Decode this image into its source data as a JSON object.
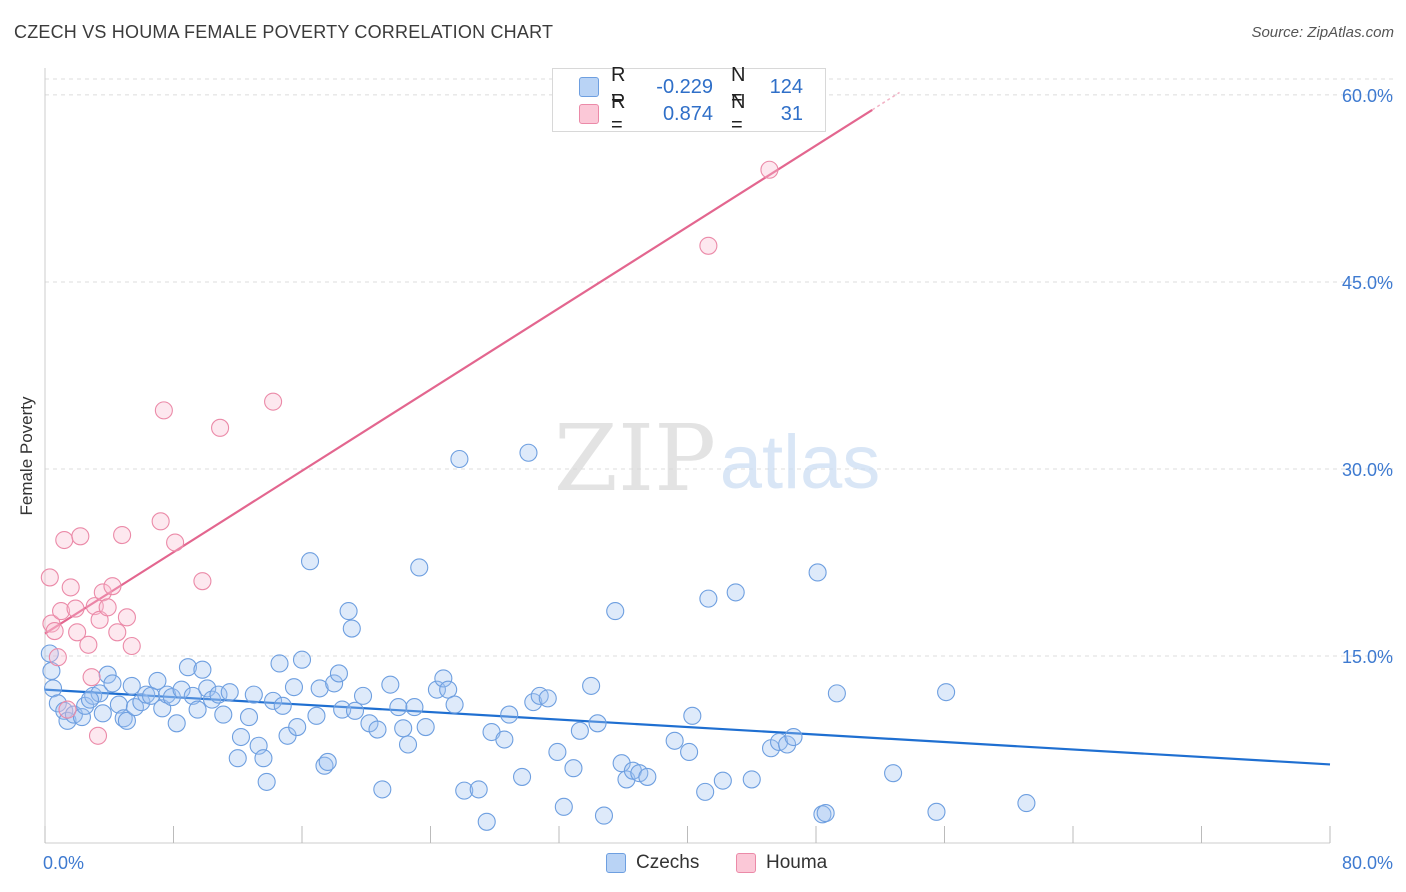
{
  "title": "CZECH VS HOUMA FEMALE POVERTY CORRELATION CHART",
  "source": "Source: ZipAtlas.com",
  "watermark": {
    "zip": "ZIP",
    "atlas": "atlas"
  },
  "legend": [
    {
      "r_label": "R =",
      "r_value": "-0.229",
      "n_label": "N =",
      "n_value": "124",
      "color": "#6e9fe0"
    },
    {
      "r_label": "R =",
      "r_value": "0.874",
      "n_label": "N =",
      "n_value": "31",
      "color": "#eb8aa8"
    }
  ],
  "bottom_legend": [
    "Czechs",
    "Houma"
  ],
  "chart_data": {
    "type": "scatter",
    "title": "CZECH VS HOUMA FEMALE POVERTY CORRELATION CHART",
    "xlabel": "",
    "ylabel": "Female Poverty",
    "xlim": [
      0,
      80
    ],
    "ylim": [
      0,
      62
    ],
    "x_tick_labels": [
      "0.0%",
      "80.0%"
    ],
    "y_ticks": [
      15,
      30,
      45,
      60
    ],
    "y_tick_labels": [
      "15.0%",
      "30.0%",
      "45.0%",
      "60.0%"
    ],
    "grid": true,
    "legend_position": "top-center",
    "series": [
      {
        "name": "Czechs",
        "color": "#6e9fe0",
        "trend": [
          [
            0,
            12.3
          ],
          [
            80,
            6.3
          ]
        ],
        "points": [
          [
            0.3,
            15.2
          ],
          [
            0.5,
            12.4
          ],
          [
            0.8,
            11.2
          ],
          [
            1.2,
            10.6
          ],
          [
            1.4,
            9.8
          ],
          [
            1.8,
            10.3
          ],
          [
            2.3,
            10.1
          ],
          [
            2.5,
            11.0
          ],
          [
            3.0,
            11.8
          ],
          [
            3.4,
            12.0
          ],
          [
            3.6,
            10.4
          ],
          [
            3.9,
            13.5
          ],
          [
            4.2,
            12.8
          ],
          [
            4.6,
            11.1
          ],
          [
            4.9,
            10.0
          ],
          [
            5.1,
            9.8
          ],
          [
            5.4,
            12.6
          ],
          [
            5.6,
            10.9
          ],
          [
            6.0,
            11.3
          ],
          [
            6.3,
            11.9
          ],
          [
            6.6,
            11.8
          ],
          [
            7.0,
            13.0
          ],
          [
            7.3,
            10.8
          ],
          [
            7.6,
            11.9
          ],
          [
            7.9,
            11.7
          ],
          [
            8.2,
            9.6
          ],
          [
            8.5,
            12.3
          ],
          [
            8.9,
            14.1
          ],
          [
            9.2,
            11.8
          ],
          [
            9.5,
            10.7
          ],
          [
            9.8,
            13.9
          ],
          [
            10.1,
            12.4
          ],
          [
            10.4,
            11.5
          ],
          [
            10.8,
            11.9
          ],
          [
            11.1,
            10.3
          ],
          [
            11.5,
            12.1
          ],
          [
            12.0,
            6.8
          ],
          [
            12.2,
            8.5
          ],
          [
            12.7,
            10.1
          ],
          [
            13.0,
            11.9
          ],
          [
            13.3,
            7.8
          ],
          [
            13.6,
            6.8
          ],
          [
            13.8,
            4.9
          ],
          [
            14.2,
            11.4
          ],
          [
            14.6,
            14.4
          ],
          [
            14.8,
            11.0
          ],
          [
            15.1,
            8.6
          ],
          [
            15.5,
            12.5
          ],
          [
            15.7,
            9.3
          ],
          [
            16.0,
            14.7
          ],
          [
            16.5,
            22.6
          ],
          [
            16.9,
            10.2
          ],
          [
            17.1,
            12.4
          ],
          [
            17.4,
            6.2
          ],
          [
            17.6,
            6.5
          ],
          [
            18.0,
            12.8
          ],
          [
            18.3,
            13.6
          ],
          [
            18.5,
            10.7
          ],
          [
            18.9,
            18.6
          ],
          [
            19.1,
            17.2
          ],
          [
            19.3,
            10.6
          ],
          [
            19.8,
            11.8
          ],
          [
            20.2,
            9.6
          ],
          [
            20.7,
            9.1
          ],
          [
            21.0,
            4.3
          ],
          [
            21.5,
            12.7
          ],
          [
            22.0,
            10.9
          ],
          [
            22.3,
            9.2
          ],
          [
            22.6,
            7.9
          ],
          [
            23.0,
            10.9
          ],
          [
            23.3,
            22.1
          ],
          [
            23.7,
            9.3
          ],
          [
            24.4,
            12.3
          ],
          [
            24.8,
            13.2
          ],
          [
            25.1,
            12.3
          ],
          [
            25.5,
            11.1
          ],
          [
            25.8,
            30.8
          ],
          [
            26.1,
            4.2
          ],
          [
            27.0,
            4.3
          ],
          [
            27.5,
            1.7
          ],
          [
            27.8,
            8.9
          ],
          [
            28.6,
            8.3
          ],
          [
            28.9,
            10.3
          ],
          [
            29.7,
            5.3
          ],
          [
            30.1,
            31.3
          ],
          [
            30.4,
            11.3
          ],
          [
            30.8,
            11.8
          ],
          [
            31.3,
            11.6
          ],
          [
            31.9,
            7.3
          ],
          [
            32.3,
            2.9
          ],
          [
            32.9,
            6.0
          ],
          [
            33.3,
            9.0
          ],
          [
            34.0,
            12.6
          ],
          [
            34.4,
            9.6
          ],
          [
            34.8,
            2.2
          ],
          [
            35.5,
            18.6
          ],
          [
            35.9,
            6.4
          ],
          [
            36.2,
            5.1
          ],
          [
            36.6,
            5.8
          ],
          [
            37.0,
            5.6
          ],
          [
            37.5,
            5.3
          ],
          [
            39.2,
            8.2
          ],
          [
            40.1,
            7.3
          ],
          [
            40.3,
            10.2
          ],
          [
            41.1,
            4.1
          ],
          [
            41.3,
            19.6
          ],
          [
            42.2,
            5.0
          ],
          [
            43.0,
            20.1
          ],
          [
            44.0,
            5.1
          ],
          [
            45.2,
            7.6
          ],
          [
            45.7,
            8.1
          ],
          [
            46.2,
            7.9
          ],
          [
            46.6,
            8.5
          ],
          [
            48.1,
            21.7
          ],
          [
            48.4,
            2.3
          ],
          [
            48.6,
            2.4
          ],
          [
            49.3,
            12.0
          ],
          [
            52.8,
            5.6
          ],
          [
            55.5,
            2.5
          ],
          [
            56.1,
            12.1
          ],
          [
            61.1,
            3.2
          ],
          [
            0.4,
            13.8
          ],
          [
            2.8,
            11.5
          ]
        ]
      },
      {
        "name": "Houma",
        "color": "#eb8aa8",
        "trend": [
          [
            0,
            16.8
          ],
          [
            51.5,
            58.8
          ]
        ],
        "points": [
          [
            0.3,
            21.3
          ],
          [
            0.4,
            17.6
          ],
          [
            0.6,
            17.0
          ],
          [
            0.8,
            14.9
          ],
          [
            1.0,
            18.6
          ],
          [
            1.2,
            24.3
          ],
          [
            1.4,
            10.7
          ],
          [
            1.6,
            20.5
          ],
          [
            1.9,
            18.8
          ],
          [
            2.0,
            16.9
          ],
          [
            2.2,
            24.6
          ],
          [
            2.7,
            15.9
          ],
          [
            2.9,
            13.3
          ],
          [
            3.1,
            19.0
          ],
          [
            3.3,
            8.6
          ],
          [
            3.4,
            17.9
          ],
          [
            3.6,
            20.1
          ],
          [
            3.9,
            18.9
          ],
          [
            4.2,
            20.6
          ],
          [
            4.5,
            16.9
          ],
          [
            4.8,
            24.7
          ],
          [
            5.1,
            18.1
          ],
          [
            5.4,
            15.8
          ],
          [
            7.2,
            25.8
          ],
          [
            7.4,
            34.7
          ],
          [
            8.1,
            24.1
          ],
          [
            9.8,
            21.0
          ],
          [
            10.9,
            33.3
          ],
          [
            14.2,
            35.4
          ],
          [
            41.3,
            47.9
          ],
          [
            45.1,
            54.0
          ]
        ]
      }
    ]
  }
}
